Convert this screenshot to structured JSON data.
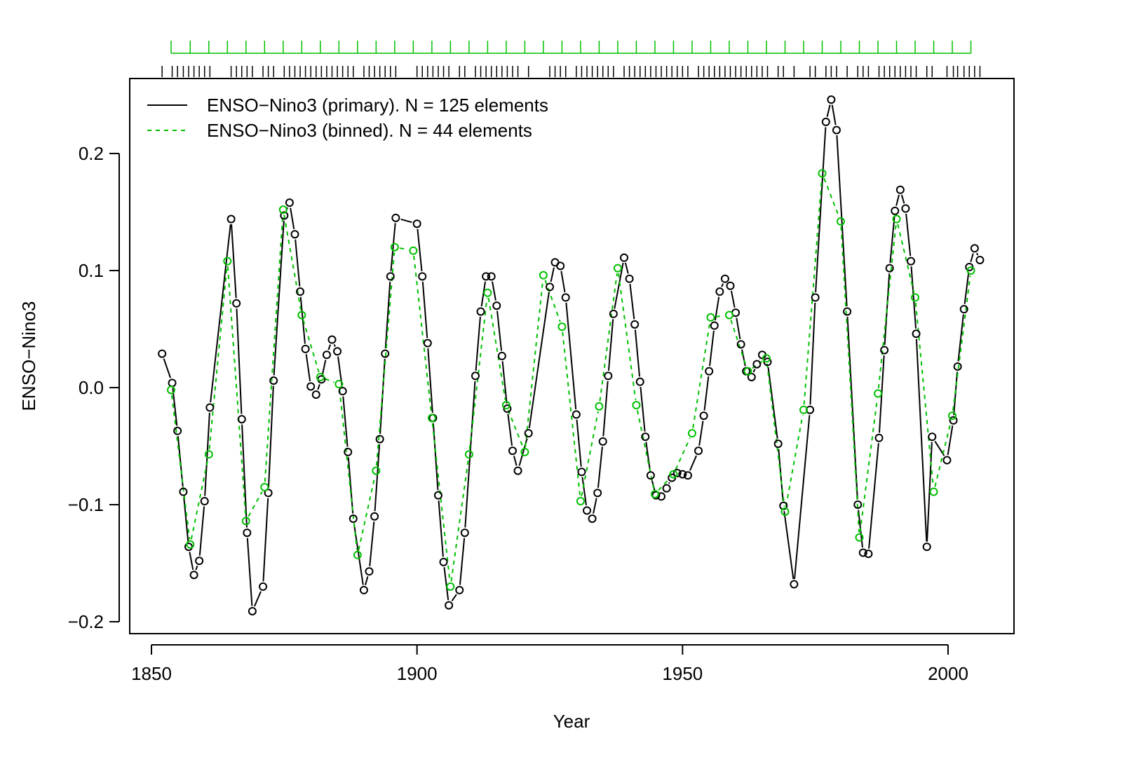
{
  "chart_data": {
    "type": "line",
    "xlabel": "Year",
    "ylabel": "ENSO−Nino3",
    "xlim": [
      1842,
      2012
    ],
    "ylim": [
      -0.23,
      0.265
    ],
    "x_ticks": [
      1850,
      1900,
      1950,
      2000
    ],
    "x_tick_labels": [
      "1850",
      "1900",
      "1950",
      "2000"
    ],
    "y_ticks": [
      -0.2,
      -0.1,
      0.0,
      0.1,
      0.2
    ],
    "y_tick_labels": [
      "−0.2",
      "−0.1",
      "0.0",
      "0.1",
      "0.2"
    ],
    "grid": false,
    "legend_position": "top-left",
    "colors": {
      "primary": "#000000",
      "binned": "#00c000"
    },
    "series": [
      {
        "name": "ENSO−Nino3 (primary). N = 125 elements",
        "line": "solid",
        "color": "#000000",
        "points": [
          [
            1852,
            0.029
          ],
          [
            1853.9,
            0.004
          ],
          [
            1854.9,
            -0.037
          ],
          [
            1856,
            -0.089
          ],
          [
            1857,
            -0.136
          ],
          [
            1858,
            -0.16
          ],
          [
            1859,
            -0.148
          ],
          [
            1860,
            -0.097
          ],
          [
            1861,
            -0.017
          ],
          [
            1865,
            0.144
          ],
          [
            1866,
            0.072
          ],
          [
            1867,
            -0.027
          ],
          [
            1868,
            -0.124
          ],
          [
            1869,
            -0.191
          ],
          [
            1871,
            -0.17
          ],
          [
            1872,
            -0.09
          ],
          [
            1873,
            0.006
          ],
          [
            1875,
            0.147
          ],
          [
            1876,
            0.158
          ],
          [
            1877,
            0.131
          ],
          [
            1878,
            0.082
          ],
          [
            1879,
            0.033
          ],
          [
            1880,
            0.001
          ],
          [
            1881,
            -0.006
          ],
          [
            1882,
            0.007
          ],
          [
            1883,
            0.028
          ],
          [
            1884,
            0.041
          ],
          [
            1885,
            0.031
          ],
          [
            1886,
            -0.003
          ],
          [
            1887,
            -0.055
          ],
          [
            1888,
            -0.112
          ],
          [
            1890,
            -0.173
          ],
          [
            1891,
            -0.157
          ],
          [
            1892,
            -0.11
          ],
          [
            1893,
            -0.044
          ],
          [
            1894,
            0.029
          ],
          [
            1895,
            0.095
          ],
          [
            1896,
            0.145
          ],
          [
            1900,
            0.14
          ],
          [
            1901,
            0.095
          ],
          [
            1902,
            0.038
          ],
          [
            1903,
            -0.026
          ],
          [
            1904,
            -0.092
          ],
          [
            1905,
            -0.149
          ],
          [
            1906,
            -0.186
          ],
          [
            1908,
            -0.173
          ],
          [
            1909,
            -0.124
          ],
          [
            1911,
            0.01
          ],
          [
            1912,
            0.065
          ],
          [
            1913,
            0.095
          ],
          [
            1914,
            0.095
          ],
          [
            1915,
            0.07
          ],
          [
            1916,
            0.027
          ],
          [
            1917,
            -0.018
          ],
          [
            1918,
            -0.054
          ],
          [
            1919,
            -0.071
          ],
          [
            1921,
            -0.039
          ],
          [
            1925,
            0.086
          ],
          [
            1926,
            0.107
          ],
          [
            1927,
            0.104
          ],
          [
            1928,
            0.077
          ],
          [
            1930,
            -0.023
          ],
          [
            1931,
            -0.072
          ],
          [
            1932,
            -0.105
          ],
          [
            1933,
            -0.112
          ],
          [
            1934,
            -0.09
          ],
          [
            1935,
            -0.046
          ],
          [
            1936,
            0.01
          ],
          [
            1937,
            0.063
          ],
          [
            1939,
            0.111
          ],
          [
            1940,
            0.093
          ],
          [
            1941,
            0.054
          ],
          [
            1942,
            0.005
          ],
          [
            1943,
            -0.042
          ],
          [
            1944,
            -0.075
          ],
          [
            1945,
            -0.092
          ],
          [
            1946,
            -0.093
          ],
          [
            1947,
            -0.086
          ],
          [
            1948,
            -0.077
          ],
          [
            1949,
            -0.073
          ],
          [
            1950,
            -0.074
          ],
          [
            1951,
            -0.075
          ],
          [
            1953,
            -0.054
          ],
          [
            1954,
            -0.024
          ],
          [
            1955,
            0.014
          ],
          [
            1956,
            0.053
          ],
          [
            1957,
            0.082
          ],
          [
            1958,
            0.093
          ],
          [
            1959,
            0.087
          ],
          [
            1960,
            0.064
          ],
          [
            1961,
            0.037
          ],
          [
            1962,
            0.014
          ],
          [
            1963,
            0.009
          ],
          [
            1964,
            0.02
          ],
          [
            1965,
            0.028
          ],
          [
            1966,
            0.022
          ],
          [
            1968,
            -0.048
          ],
          [
            1969,
            -0.101
          ],
          [
            1971,
            -0.168
          ],
          [
            1974,
            -0.019
          ],
          [
            1975,
            0.077
          ],
          [
            1977,
            0.227
          ],
          [
            1978,
            0.246
          ],
          [
            1979,
            0.22
          ],
          [
            1981,
            0.065
          ],
          [
            1983,
            -0.1
          ],
          [
            1984,
            -0.141
          ],
          [
            1985,
            -0.142
          ],
          [
            1987,
            -0.043
          ],
          [
            1988,
            0.032
          ],
          [
            1989,
            0.102
          ],
          [
            1990,
            0.151
          ],
          [
            1991,
            0.169
          ],
          [
            1992,
            0.153
          ],
          [
            1993,
            0.108
          ],
          [
            1994,
            0.046
          ],
          [
            1996,
            -0.136
          ],
          [
            1997,
            -0.042
          ],
          [
            1999.8,
            -0.062
          ],
          [
            2001,
            -0.028
          ],
          [
            2001.8,
            0.018
          ],
          [
            2003,
            0.067
          ],
          [
            2004,
            0.103
          ],
          [
            2005,
            0.119
          ],
          [
            2006,
            0.109
          ]
        ]
      },
      {
        "name": "ENSO−Nino3 (binned). N = 44 elements",
        "line": "dashed",
        "color": "#00c000",
        "points": [
          [
            1853.7,
            -0.002
          ],
          [
            1857.3,
            -0.134
          ],
          [
            1860.8,
            -0.057
          ],
          [
            1864.3,
            0.108
          ],
          [
            1867.8,
            -0.114
          ],
          [
            1871.3,
            -0.085
          ],
          [
            1874.8,
            0.152
          ],
          [
            1878.3,
            0.062
          ],
          [
            1881.8,
            0.009
          ],
          [
            1885.3,
            0.003
          ],
          [
            1888.8,
            -0.143
          ],
          [
            1892.3,
            -0.071
          ],
          [
            1895.8,
            0.12
          ],
          [
            1899.3,
            0.117
          ],
          [
            1902.8,
            -0.026
          ],
          [
            1906.3,
            -0.17
          ],
          [
            1909.8,
            -0.057
          ],
          [
            1913.3,
            0.081
          ],
          [
            1916.8,
            -0.015
          ],
          [
            1920.3,
            -0.055
          ],
          [
            1923.8,
            0.096
          ],
          [
            1927.3,
            0.052
          ],
          [
            1930.8,
            -0.097
          ],
          [
            1934.3,
            -0.016
          ],
          [
            1937.8,
            0.102
          ],
          [
            1941.3,
            -0.015
          ],
          [
            1944.8,
            -0.091
          ],
          [
            1948.3,
            -0.074
          ],
          [
            1951.8,
            -0.039
          ],
          [
            1955.3,
            0.06
          ],
          [
            1958.8,
            0.062
          ],
          [
            1962.3,
            0.014
          ],
          [
            1965.8,
            0.025
          ],
          [
            1969.3,
            -0.106
          ],
          [
            1972.8,
            -0.019
          ],
          [
            1976.3,
            0.183
          ],
          [
            1979.8,
            0.142
          ],
          [
            1983.3,
            -0.128
          ],
          [
            1986.8,
            -0.005
          ],
          [
            1990.3,
            0.144
          ],
          [
            1993.8,
            0.077
          ],
          [
            1997.3,
            -0.089
          ],
          [
            2000.8,
            -0.024
          ],
          [
            2004.3,
            0.1
          ]
        ]
      }
    ]
  }
}
